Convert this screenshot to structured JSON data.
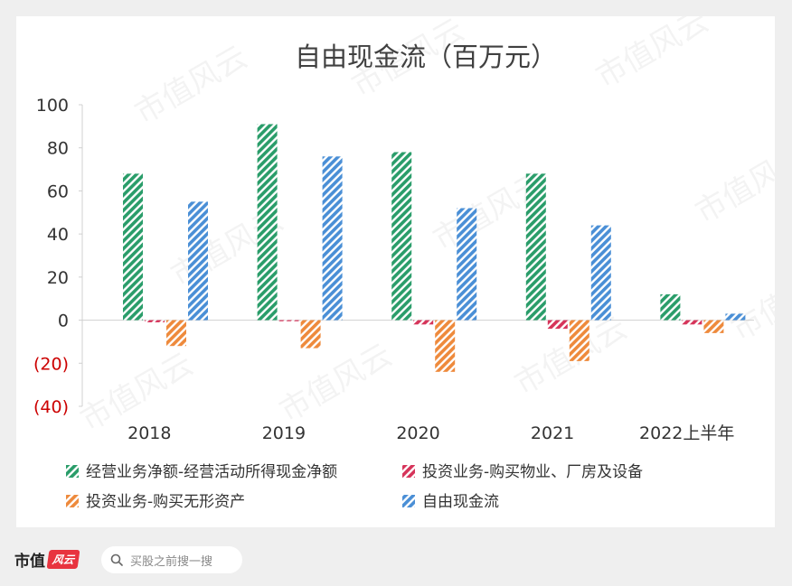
{
  "chart_data": {
    "type": "bar",
    "title": "自由现金流（百万元）",
    "categories": [
      "2018",
      "2019",
      "2020",
      "2021",
      "2022上半年"
    ],
    "ylim": [
      -40,
      100
    ],
    "yticks": [
      {
        "value": 100,
        "label": "100"
      },
      {
        "value": 80,
        "label": "80"
      },
      {
        "value": 60,
        "label": "60"
      },
      {
        "value": 40,
        "label": "40"
      },
      {
        "value": 20,
        "label": "20"
      },
      {
        "value": 0,
        "label": "0"
      },
      {
        "value": -20,
        "label": "(20)"
      },
      {
        "value": -40,
        "label": "(40)"
      }
    ],
    "negative_tick_color": "#cc0000",
    "grid": false,
    "legend_position": "bottom",
    "series": [
      {
        "name": "经营业务净额-经营活动所得现金净额",
        "color": "#2a9d6a",
        "values": [
          68,
          91,
          78,
          68,
          12
        ]
      },
      {
        "name": "投资业务-购买物业、厂房及设备",
        "color": "#d6345a",
        "values": [
          -1,
          -0.5,
          -2,
          -4,
          -2
        ]
      },
      {
        "name": "投资业务-购买无形资产",
        "color": "#ee8a3c",
        "values": [
          -12,
          -13,
          -24,
          -19,
          -6
        ]
      },
      {
        "name": "自由现金流",
        "color": "#4a8fd6",
        "values": [
          55,
          76,
          52,
          44,
          3
        ]
      }
    ],
    "bar_pattern": "diagonal-stripes"
  },
  "watermark": "市值风云",
  "footer": {
    "brand": "市值",
    "brand_badge": "风云",
    "search_placeholder": "买股之前搜一搜",
    "search_icon": "search-icon"
  }
}
